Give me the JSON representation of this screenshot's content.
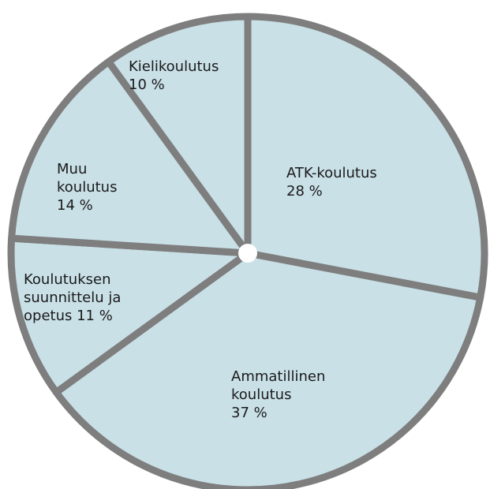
{
  "chart_data": {
    "type": "pie",
    "categories": [
      "ATK-koulutus",
      "Ammatillinen koulutus",
      "Koulutuksen suunnittelu ja opetus",
      "Muu koulutus",
      "Kielikoulutus"
    ],
    "values": [
      28,
      37,
      11,
      14,
      10
    ],
    "value_labels": [
      "28 %",
      "37 %",
      "11 %",
      "14 %",
      "10 %"
    ],
    "color": "#c9e0e7"
  }
}
